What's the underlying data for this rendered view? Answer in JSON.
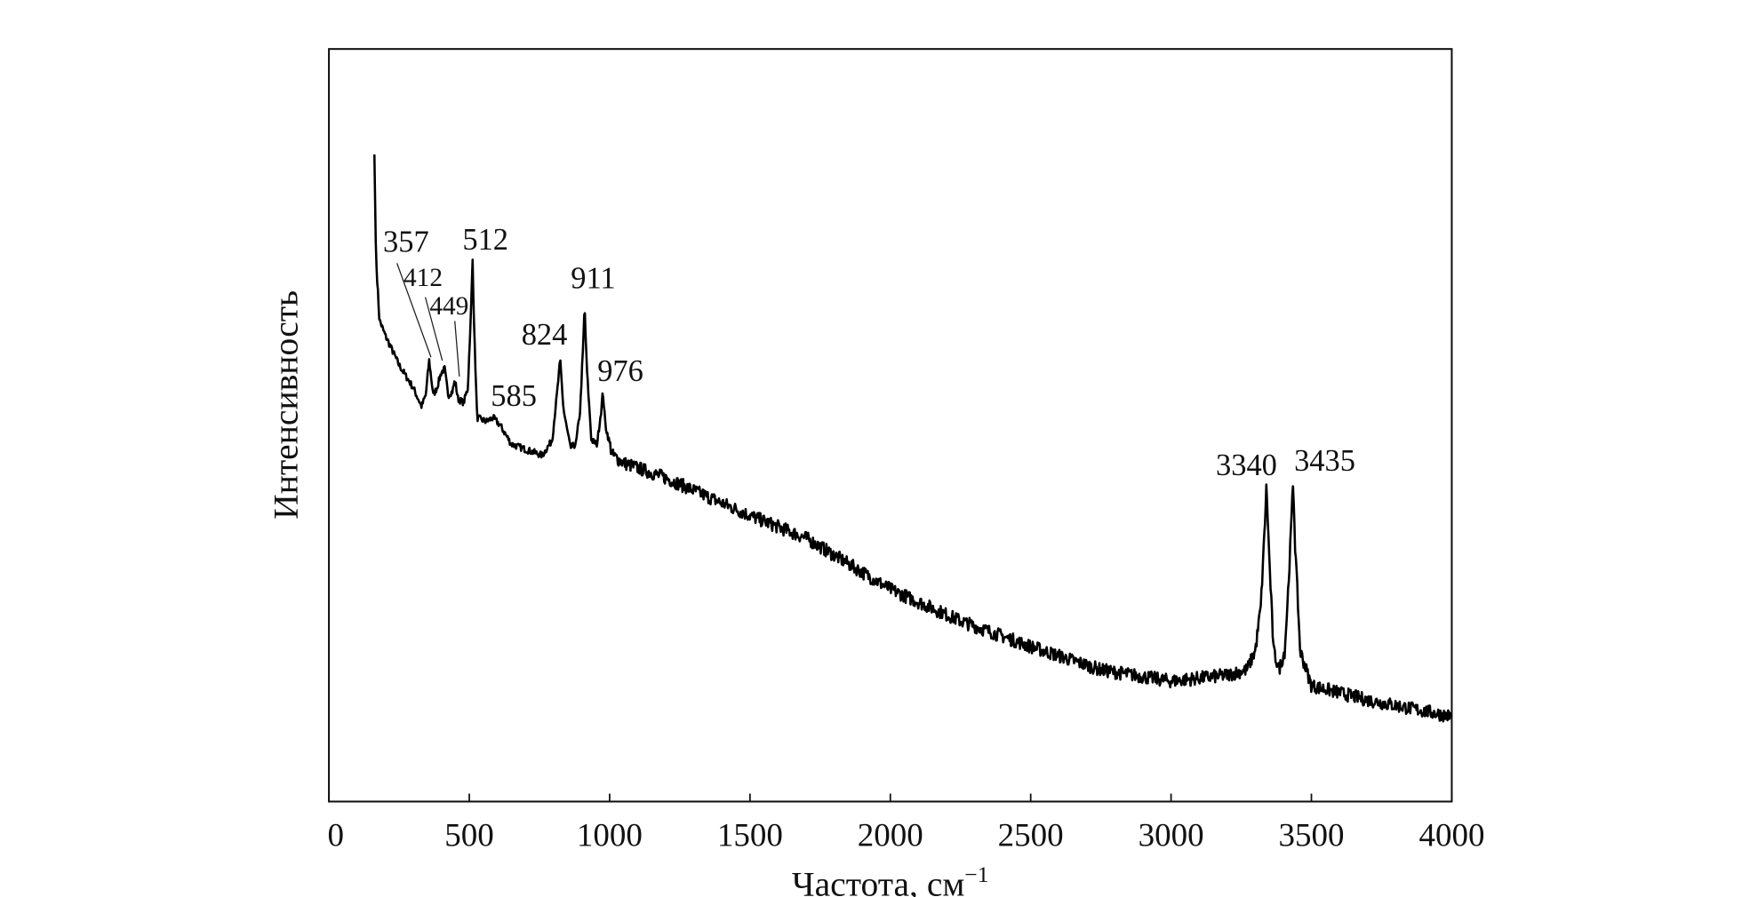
{
  "chart_data": {
    "type": "line",
    "title": "",
    "xlabel": "Частота, см",
    "xlabel_superscript": "−1",
    "ylabel": "Интенсивность",
    "xlim": [
      0,
      4000
    ],
    "ylim": [
      0,
      100
    ],
    "y_units_note_visible": false,
    "xticks": [
      0,
      500,
      1000,
      1500,
      2000,
      2500,
      3000,
      3500,
      4000
    ],
    "xtick_labels": [
      "0",
      "500",
      "1000",
      "1500",
      "2000",
      "2500",
      "3000",
      "3500",
      "4000"
    ],
    "grid": false,
    "legend": "none",
    "line_color": "#000000",
    "series": [
      {
        "points": [
          [
            162,
            86
          ],
          [
            168,
            72
          ],
          [
            180,
            64
          ],
          [
            200,
            62
          ],
          [
            250,
            58
          ],
          [
            300,
            55
          ],
          [
            330,
            52.5
          ],
          [
            345,
            54
          ],
          [
            357,
            58.6
          ],
          [
            372,
            54
          ],
          [
            385,
            55
          ],
          [
            400,
            57
          ],
          [
            412,
            57.5
          ],
          [
            425,
            54
          ],
          [
            440,
            54.5
          ],
          [
            449,
            56
          ],
          [
            460,
            53.5
          ],
          [
            480,
            53
          ],
          [
            495,
            55
          ],
          [
            505,
            64
          ],
          [
            512,
            72
          ],
          [
            518,
            62
          ],
          [
            528,
            51
          ],
          [
            560,
            50.5
          ],
          [
            585,
            51
          ],
          [
            610,
            50
          ],
          [
            650,
            47.5
          ],
          [
            700,
            46.8
          ],
          [
            760,
            46
          ],
          [
            795,
            48
          ],
          [
            812,
            54
          ],
          [
            824,
            58.6
          ],
          [
            836,
            52
          ],
          [
            860,
            47
          ],
          [
            880,
            47.5
          ],
          [
            895,
            52
          ],
          [
            905,
            60
          ],
          [
            911,
            66
          ],
          [
            918,
            58
          ],
          [
            935,
            48
          ],
          [
            955,
            47.5
          ],
          [
            970,
            52
          ],
          [
            976,
            54.5
          ],
          [
            985,
            50
          ],
          [
            1010,
            46
          ],
          [
            1050,
            45
          ],
          [
            1200,
            43
          ],
          [
            1500,
            38
          ],
          [
            1700,
            35
          ],
          [
            2000,
            28.2
          ],
          [
            2250,
            24
          ],
          [
            2500,
            20.6
          ],
          [
            2750,
            17.5
          ],
          [
            3000,
            16
          ],
          [
            3200,
            16.8
          ],
          [
            3270,
            17.5
          ],
          [
            3300,
            20
          ],
          [
            3320,
            26
          ],
          [
            3333,
            36
          ],
          [
            3340,
            42
          ],
          [
            3348,
            34
          ],
          [
            3365,
            20
          ],
          [
            3385,
            17.6
          ],
          [
            3405,
            20
          ],
          [
            3420,
            30
          ],
          [
            3435,
            42.5
          ],
          [
            3442,
            34
          ],
          [
            3460,
            20
          ],
          [
            3500,
            15.4
          ],
          [
            3700,
            13.5
          ],
          [
            4000,
            11.3
          ]
        ]
      }
    ],
    "annotations": [
      {
        "text": "357",
        "x": 357
      },
      {
        "text": "412",
        "x": 412
      },
      {
        "text": "449",
        "x": 449
      },
      {
        "text": "512",
        "x": 512
      },
      {
        "text": "585",
        "x": 585
      },
      {
        "text": "824",
        "x": 824
      },
      {
        "text": "911",
        "x": 911
      },
      {
        "text": "976",
        "x": 976
      },
      {
        "text": "3340",
        "x": 3340
      },
      {
        "text": "3435",
        "x": 3435
      }
    ]
  }
}
